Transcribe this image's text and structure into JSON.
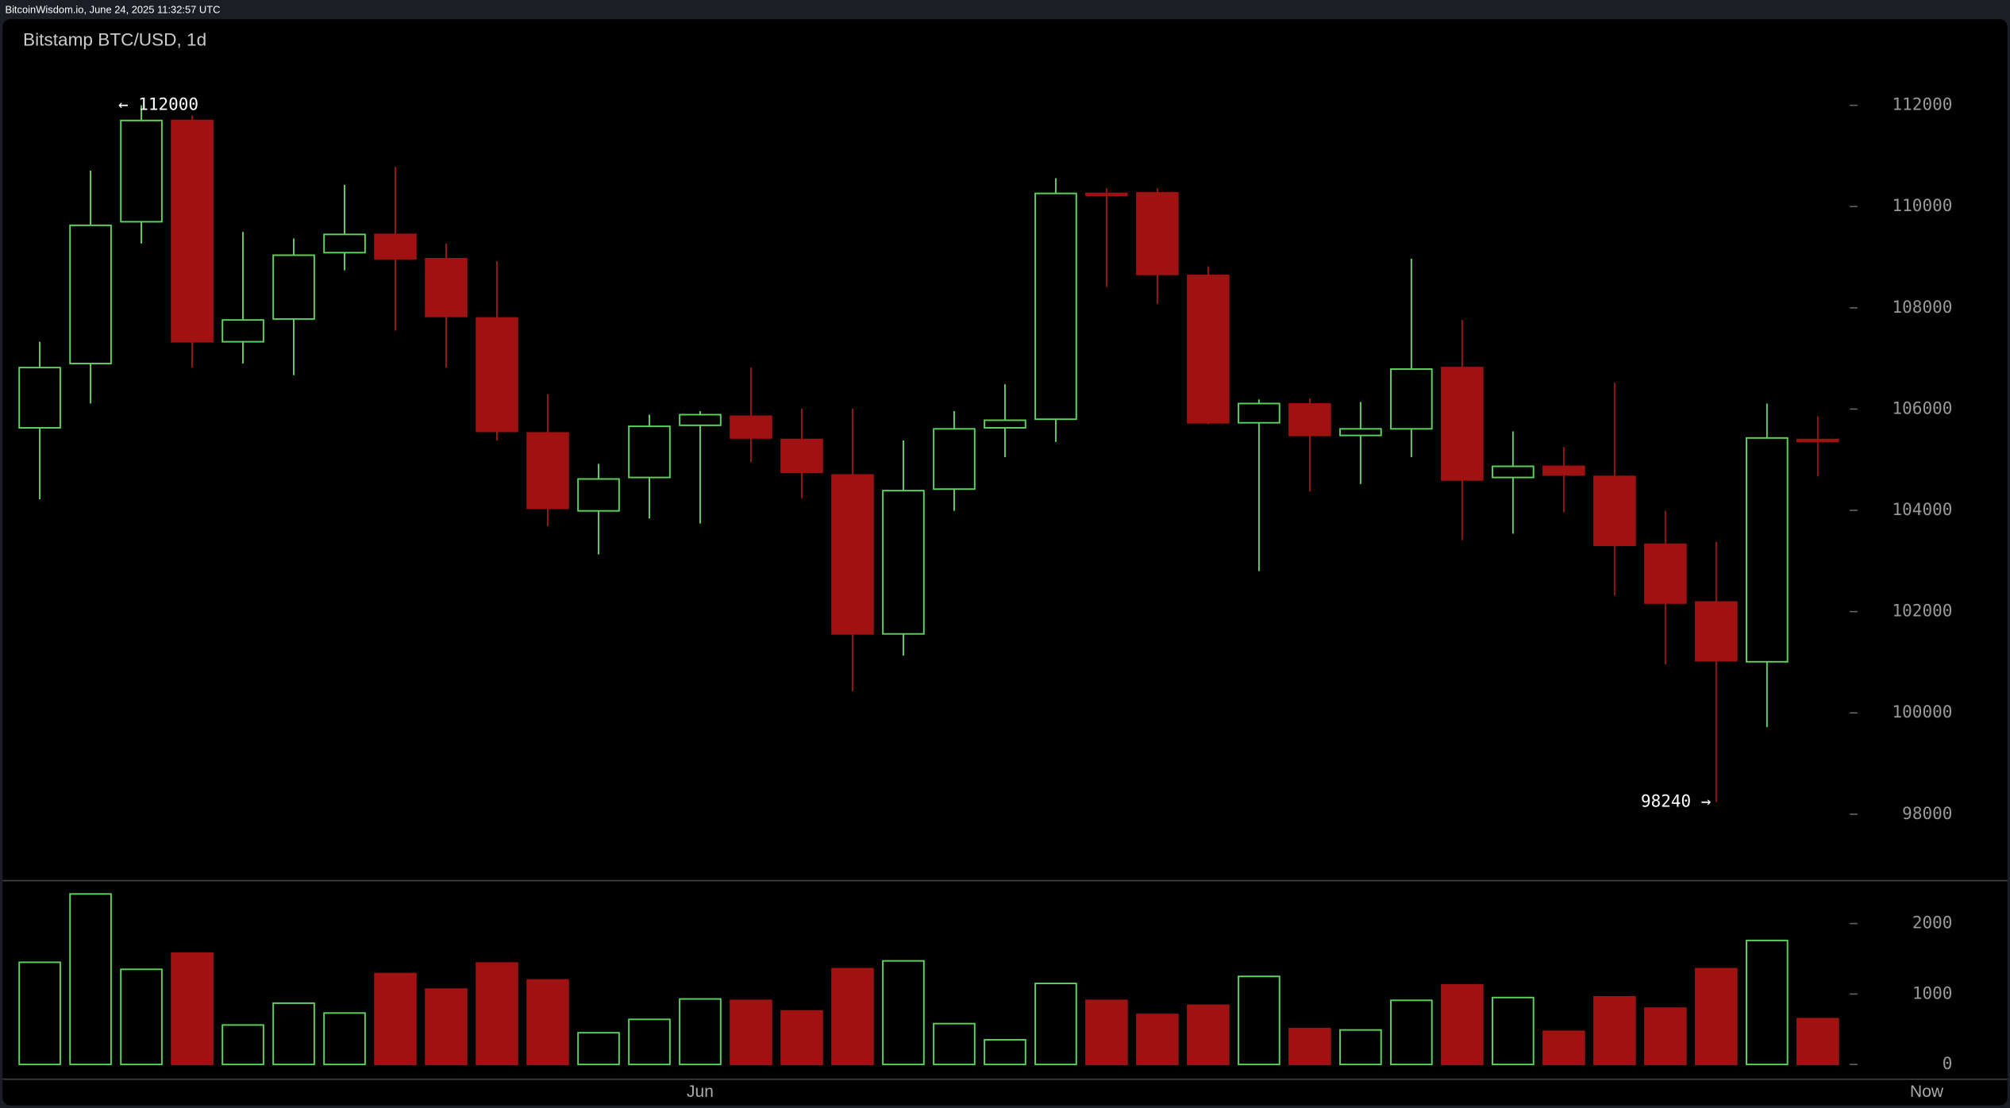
{
  "header": {
    "text": "BitcoinWisdom.io, June 24, 2025 11:32:57 UTC"
  },
  "chart_data": [
    {
      "type": "candlestick",
      "title": "Bitstamp BTC/USD, 1d",
      "categories": [
        null,
        null,
        null,
        null,
        null,
        null,
        null,
        null,
        null,
        null,
        null,
        null,
        null,
        "Jun",
        null,
        null,
        null,
        null,
        null,
        null,
        null,
        null,
        null,
        null,
        null,
        null,
        null,
        null,
        null,
        null,
        null,
        null,
        null,
        null,
        null,
        null
      ],
      "series": {
        "open": [
          105630,
          106900,
          109700,
          111700,
          107330,
          107780,
          109090,
          109450,
          108970,
          107800,
          105530,
          103990,
          104650,
          105680,
          105860,
          105400,
          104700,
          101560,
          104420,
          105630,
          105800,
          110260,
          110270,
          108640,
          105730,
          106100,
          105480,
          105610,
          106820,
          104650,
          104870,
          104670,
          103330,
          102190,
          101010,
          105400
        ],
        "high": [
          107330,
          110710,
          112000,
          111800,
          109500,
          109370,
          110430,
          110790,
          109270,
          108920,
          106290,
          104920,
          105890,
          105960,
          106820,
          106010,
          106010,
          105380,
          105960,
          106490,
          110560,
          110360,
          110360,
          108820,
          106190,
          106210,
          106140,
          108970,
          107760,
          105560,
          105250,
          106520,
          103990,
          103380,
          106110,
          105860
        ],
        "low": [
          104220,
          106110,
          109270,
          106820,
          106900,
          106670,
          108740,
          107550,
          106820,
          105380,
          103690,
          103130,
          103840,
          103740,
          104950,
          104240,
          100430,
          101130,
          103990,
          105050,
          105350,
          108410,
          108080,
          105700,
          102800,
          104370,
          104520,
          105050,
          103410,
          103540,
          103960,
          102320,
          100960,
          98240,
          99720,
          104670
        ],
        "close": [
          106820,
          109630,
          111700,
          107330,
          107760,
          109040,
          109450,
          108970,
          107830,
          105560,
          104040,
          104620,
          105660,
          105890,
          105430,
          104750,
          101560,
          104390,
          105610,
          105780,
          110260,
          110240,
          108660,
          105730,
          106110,
          105480,
          105610,
          106790,
          104600,
          104870,
          104700,
          103310,
          102170,
          101030,
          105430,
          105380
        ]
      },
      "up_color": "#5cd35c",
      "down_color": "#a01212",
      "ylim": [
        96700,
        113700
      ],
      "yticks": [
        98000,
        100000,
        102000,
        104000,
        106000,
        108000,
        110000,
        112000
      ],
      "max_label": "← 112000",
      "min_label": "98240 →"
    },
    {
      "type": "bar",
      "values": [
        1450,
        2420,
        1350,
        1580,
        560,
        870,
        730,
        1290,
        1070,
        1440,
        1200,
        450,
        640,
        930,
        910,
        760,
        1360,
        1470,
        580,
        350,
        1150,
        910,
        710,
        840,
        1250,
        510,
        490,
        910,
        1130,
        950,
        470,
        960,
        800,
        1360,
        1760,
        650
      ],
      "ylim": [
        -200,
        2600
      ],
      "yticks": [
        0,
        1000,
        2000
      ]
    }
  ],
  "now_label": "Now"
}
